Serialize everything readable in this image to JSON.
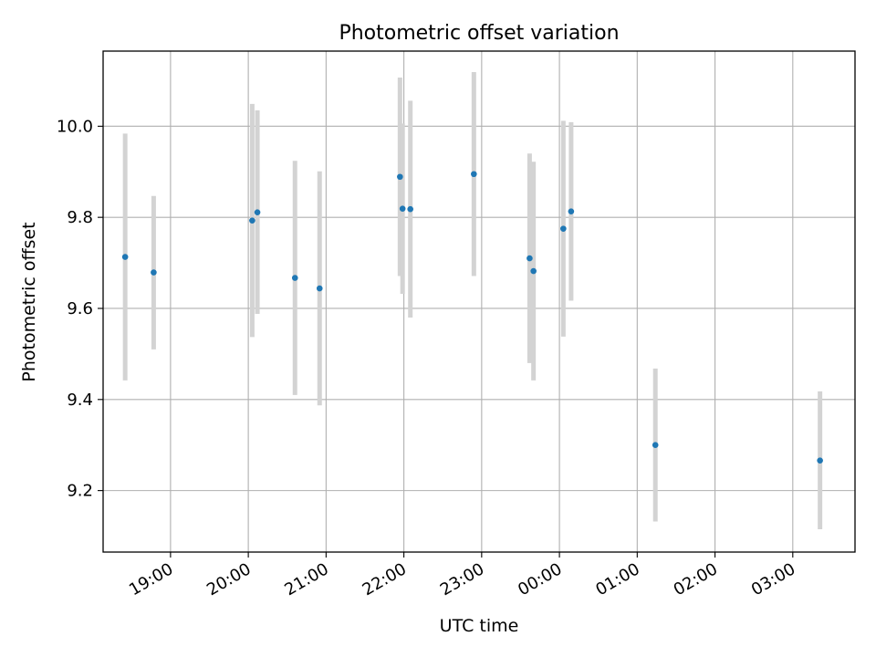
{
  "chart_data": {
    "type": "scatter",
    "title": "Photometric offset variation",
    "xlabel": "UTC time",
    "ylabel": "Photometric offset",
    "x_axis": "time",
    "x_range": [
      "18:08",
      "03:48"
    ],
    "y_range": [
      9.065,
      10.165
    ],
    "y_ticks": [
      9.2,
      9.4,
      9.6,
      9.8,
      10.0
    ],
    "y_tick_labels": [
      "9.2",
      "9.4",
      "9.6",
      "9.8",
      "10.0"
    ],
    "x_ticks": [
      "19:00",
      "20:00",
      "21:00",
      "22:00",
      "23:00",
      "00:00",
      "01:00",
      "02:00",
      "03:00"
    ],
    "x_tick_labels": [
      "19:00",
      "20:00",
      "21:00",
      "22:00",
      "23:00",
      "00:00",
      "01:00",
      "02:00",
      "03:00"
    ],
    "grid": true,
    "marker_color": "#1f77b4",
    "errorbar_color": "#d3d3d3",
    "points": [
      {
        "x": "18:25",
        "y": 9.713,
        "low": 9.442,
        "high": 9.984
      },
      {
        "x": "18:47",
        "y": 9.679,
        "low": 9.51,
        "high": 9.847
      },
      {
        "x": "20:03",
        "y": 9.793,
        "low": 9.537,
        "high": 10.049
      },
      {
        "x": "20:07",
        "y": 9.811,
        "low": 9.588,
        "high": 10.035
      },
      {
        "x": "20:36",
        "y": 9.667,
        "low": 9.41,
        "high": 9.924
      },
      {
        "x": "20:55",
        "y": 9.644,
        "low": 9.387,
        "high": 9.901
      },
      {
        "x": "21:57",
        "y": 9.889,
        "low": 9.671,
        "high": 10.107
      },
      {
        "x": "21:59",
        "y": 9.819,
        "low": 9.632,
        "high": 10.006
      },
      {
        "x": "22:05",
        "y": 9.818,
        "low": 9.58,
        "high": 10.056
      },
      {
        "x": "22:54",
        "y": 9.895,
        "low": 9.671,
        "high": 10.119
      },
      {
        "x": "23:37",
        "y": 9.71,
        "low": 9.48,
        "high": 9.94
      },
      {
        "x": "23:40",
        "y": 9.682,
        "low": 9.442,
        "high": 9.922
      },
      {
        "x": "00:03",
        "y": 9.775,
        "low": 9.538,
        "high": 10.012
      },
      {
        "x": "00:09",
        "y": 9.813,
        "low": 9.617,
        "high": 10.009
      },
      {
        "x": "01:14",
        "y": 9.3,
        "low": 9.132,
        "high": 9.468
      },
      {
        "x": "03:21",
        "y": 9.266,
        "low": 9.115,
        "high": 9.418
      }
    ]
  }
}
